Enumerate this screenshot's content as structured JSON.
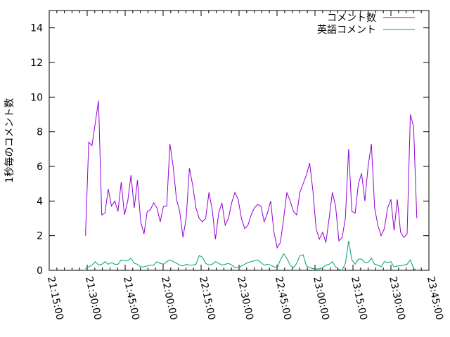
{
  "chart_data": {
    "type": "line",
    "title": "",
    "xlabel": "",
    "ylabel": "1秒毎のコメント数",
    "xlim": [
      "21:15:00",
      "23:45:00"
    ],
    "ylim": [
      0,
      15
    ],
    "x_ticks": [
      "21:15:00",
      "21:30:00",
      "21:45:00",
      "22:00:00",
      "22:15:00",
      "22:30:00",
      "22:45:00",
      "23:00:00",
      "23:15:00",
      "23:30:00",
      "23:45:00"
    ],
    "y_ticks": [
      0,
      2,
      4,
      6,
      8,
      10,
      12,
      14
    ],
    "grid": false,
    "legend_position": "top-right",
    "x": [
      "21:29:20",
      "21:30:37",
      "21:31:54",
      "21:33:11",
      "21:34:28",
      "21:35:45",
      "21:37:02",
      "21:38:19",
      "21:39:36",
      "21:40:53",
      "21:42:10",
      "21:43:27",
      "21:44:44",
      "21:46:01",
      "21:47:18",
      "21:48:35",
      "21:49:52",
      "21:51:09",
      "21:52:26",
      "21:53:43",
      "21:55:00",
      "21:56:17",
      "21:57:34",
      "21:58:51",
      "22:00:08",
      "22:01:25",
      "22:02:42",
      "22:03:59",
      "22:05:16",
      "22:06:33",
      "22:07:50",
      "22:09:07",
      "22:10:24",
      "22:11:41",
      "22:12:58",
      "22:14:15",
      "22:15:32",
      "22:16:49",
      "22:18:06",
      "22:19:23",
      "22:20:40",
      "22:21:57",
      "22:23:14",
      "22:24:31",
      "22:25:48",
      "22:27:05",
      "22:28:22",
      "22:29:39",
      "22:30:56",
      "22:32:13",
      "22:33:30",
      "22:34:47",
      "22:36:04",
      "22:37:21",
      "22:38:38",
      "22:39:55",
      "22:41:12",
      "22:42:29",
      "22:43:46",
      "22:45:03",
      "22:46:20",
      "22:47:37",
      "22:48:54",
      "22:50:11",
      "22:51:28",
      "22:52:45",
      "22:54:02",
      "22:55:19",
      "22:56:36",
      "22:57:53",
      "22:59:10",
      "23:00:27",
      "23:01:44",
      "23:03:01",
      "23:04:18",
      "23:05:35",
      "23:06:52",
      "23:08:09",
      "23:09:26",
      "23:10:43",
      "23:12:00",
      "23:13:17",
      "23:14:34",
      "23:15:51",
      "23:17:08",
      "23:18:25",
      "23:19:42",
      "23:20:59",
      "23:22:16",
      "23:23:33",
      "23:24:50",
      "23:26:07",
      "23:27:24",
      "23:28:41",
      "23:29:58",
      "23:31:15",
      "23:32:32",
      "23:33:49",
      "23:35:06",
      "23:36:23",
      "23:37:40",
      "23:38:57",
      "23:40:14"
    ],
    "series": [
      {
        "name": "コメント数",
        "color": "#9400d3",
        "values": [
          2.0,
          7.4,
          7.2,
          8.5,
          9.8,
          3.2,
          3.3,
          4.7,
          3.7,
          4.0,
          3.4,
          5.1,
          3.2,
          4.0,
          5.5,
          3.6,
          5.2,
          2.8,
          2.1,
          3.4,
          3.5,
          3.9,
          3.6,
          2.8,
          3.7,
          3.7,
          7.3,
          6.0,
          4.1,
          3.4,
          1.9,
          3.0,
          5.9,
          4.9,
          3.6,
          3.0,
          2.8,
          3.0,
          4.5,
          3.5,
          1.8,
          3.3,
          3.9,
          2.6,
          3.0,
          3.9,
          4.5,
          4.1,
          3.0,
          2.4,
          2.6,
          3.2,
          3.6,
          3.8,
          3.7,
          2.8,
          3.3,
          4.0,
          2.2,
          1.3,
          1.6,
          3.0,
          4.5,
          4.0,
          3.4,
          3.2,
          4.5,
          5.0,
          5.5,
          6.2,
          4.6,
          2.4,
          1.8,
          2.2,
          1.6,
          3.0,
          4.5,
          3.7,
          1.7,
          1.9,
          3.0,
          7.0,
          3.4,
          3.3,
          5.0,
          5.6,
          4.0,
          6.0,
          7.3,
          3.6,
          2.6,
          2.0,
          2.4,
          3.6,
          4.1,
          2.3,
          4.1,
          2.2,
          1.9,
          2.1,
          9.0,
          8.3,
          3.0
        ]
      },
      {
        "name": "英語コメント",
        "color": "#009e73",
        "values": [
          0.1,
          0.2,
          0.3,
          0.5,
          0.3,
          0.35,
          0.5,
          0.35,
          0.45,
          0.35,
          0.35,
          0.6,
          0.55,
          0.55,
          0.7,
          0.4,
          0.35,
          0.2,
          0.2,
          0.25,
          0.3,
          0.3,
          0.5,
          0.4,
          0.35,
          0.5,
          0.6,
          0.5,
          0.4,
          0.3,
          0.25,
          0.35,
          0.3,
          0.3,
          0.35,
          0.85,
          0.75,
          0.4,
          0.3,
          0.35,
          0.5,
          0.4,
          0.3,
          0.35,
          0.4,
          0.3,
          0.15,
          0.15,
          0.25,
          0.35,
          0.45,
          0.5,
          0.55,
          0.6,
          0.45,
          0.3,
          0.35,
          0.3,
          0.2,
          0.15,
          0.6,
          0.95,
          0.7,
          0.3,
          0.15,
          0.4,
          0.85,
          0.9,
          0.25,
          0.15,
          0.1,
          0.08,
          0.08,
          0.15,
          0.3,
          0.35,
          0.5,
          0.2,
          0.05,
          0.0,
          0.4,
          1.7,
          0.6,
          0.35,
          0.65,
          0.65,
          0.45,
          0.45,
          0.7,
          0.35,
          0.3,
          0.2,
          0.5,
          0.45,
          0.5,
          0.2,
          0.25,
          0.25,
          0.3,
          0.35,
          0.6,
          0.1,
          0.0
        ]
      }
    ]
  }
}
